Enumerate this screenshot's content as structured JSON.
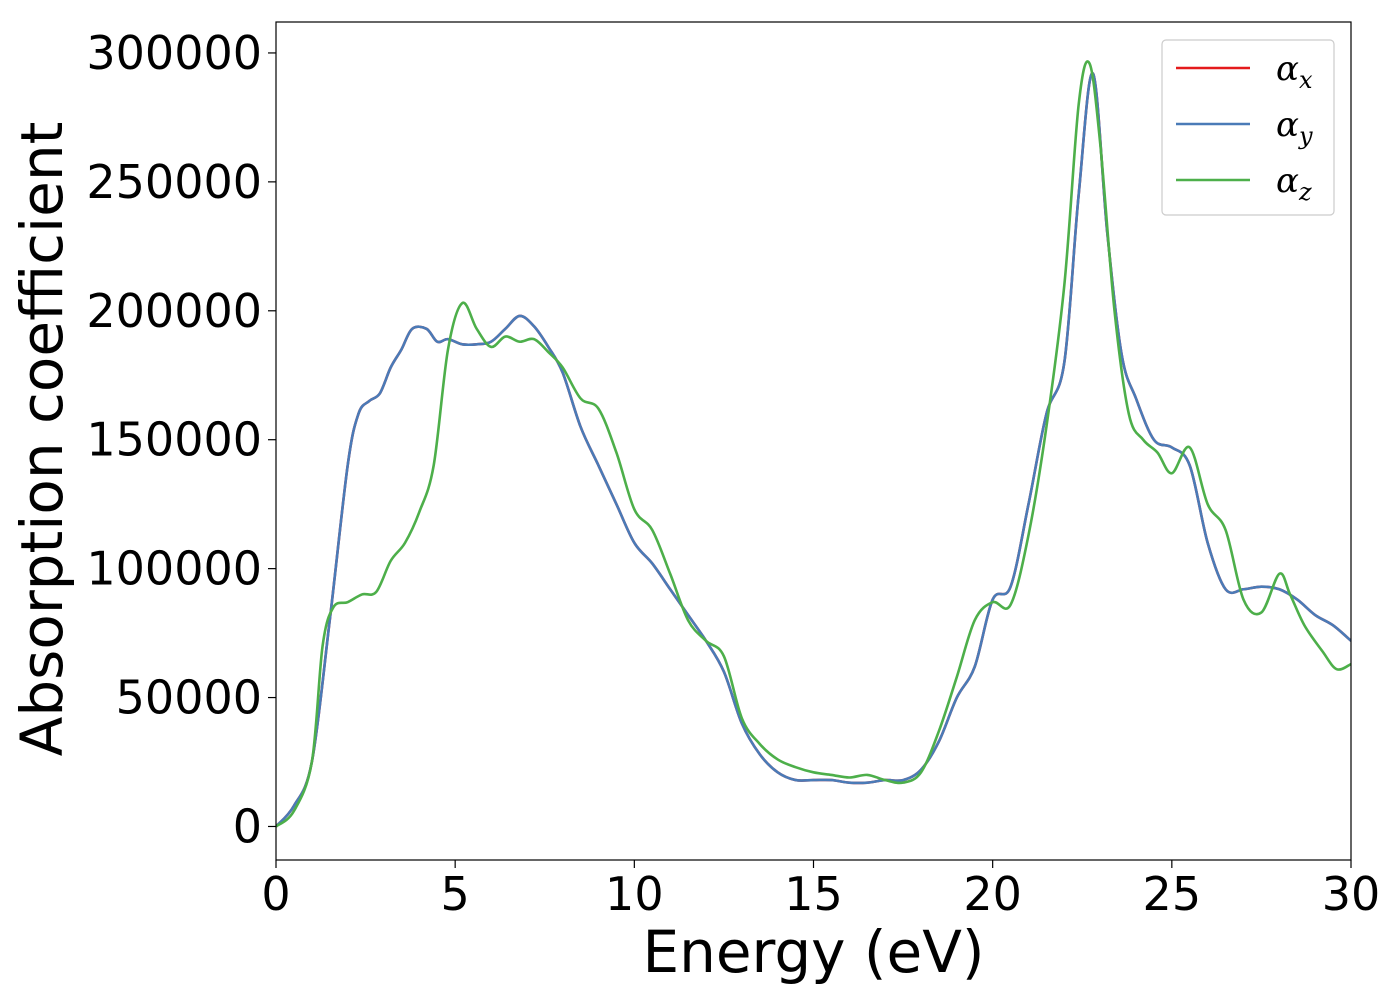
{
  "chart_data": {
    "type": "line",
    "title": "",
    "xlabel": "Energy (eV)",
    "ylabel": "Absorption coefficient",
    "xlim": [
      0,
      30
    ],
    "ylim": [
      -13000,
      312000
    ],
    "x_ticks": [
      0,
      5,
      10,
      15,
      20,
      25,
      30
    ],
    "y_ticks": [
      0,
      50000,
      100000,
      150000,
      200000,
      250000,
      300000
    ],
    "grid": false,
    "legend_position": "top-right",
    "series": [
      {
        "name": "α",
        "subscript": "x",
        "color": "#e41a1c",
        "x": [
          0,
          0.5,
          1.0,
          1.5,
          2.0,
          2.3,
          2.6,
          2.9,
          3.2,
          3.5,
          3.8,
          4.2,
          4.5,
          4.8,
          5.2,
          5.6,
          6.0,
          6.4,
          6.8,
          7.2,
          7.6,
          8.0,
          8.5,
          9.0,
          9.5,
          10.0,
          10.5,
          11.0,
          11.5,
          12.0,
          12.5,
          13.0,
          13.5,
          14.0,
          14.5,
          15.0,
          15.5,
          16.0,
          16.5,
          17.0,
          17.5,
          18.0,
          18.5,
          19.0,
          19.5,
          20.0,
          20.5,
          21.0,
          21.5,
          22.0,
          22.4,
          22.8,
          23.2,
          23.6,
          24.0,
          24.5,
          25.0,
          25.5,
          26.0,
          26.5,
          27.0,
          27.5,
          28.0,
          28.5,
          29.0,
          29.5,
          30.0
        ],
        "y": [
          0,
          8000,
          25000,
          80000,
          140000,
          160000,
          165000,
          168000,
          178000,
          185000,
          193000,
          193000,
          188000,
          189000,
          187000,
          187000,
          188000,
          193000,
          198000,
          194000,
          186000,
          176000,
          155000,
          140000,
          125000,
          110000,
          102000,
          92000,
          82000,
          72000,
          60000,
          40000,
          28000,
          21000,
          18000,
          18000,
          18000,
          17000,
          17000,
          18000,
          18000,
          22000,
          33000,
          50000,
          62000,
          88000,
          93000,
          125000,
          160000,
          180000,
          245000,
          292000,
          230000,
          183000,
          166000,
          150000,
          147000,
          140000,
          110000,
          92000,
          92000,
          93000,
          92000,
          88000,
          82000,
          78000,
          72000
        ]
      },
      {
        "name": "α",
        "subscript": "y",
        "color": "#4a7bb7",
        "x": [
          0,
          0.5,
          1.0,
          1.5,
          2.0,
          2.3,
          2.6,
          2.9,
          3.2,
          3.5,
          3.8,
          4.2,
          4.5,
          4.8,
          5.2,
          5.6,
          6.0,
          6.4,
          6.8,
          7.2,
          7.6,
          8.0,
          8.5,
          9.0,
          9.5,
          10.0,
          10.5,
          11.0,
          11.5,
          12.0,
          12.5,
          13.0,
          13.5,
          14.0,
          14.5,
          15.0,
          15.5,
          16.0,
          16.5,
          17.0,
          17.5,
          18.0,
          18.5,
          19.0,
          19.5,
          20.0,
          20.5,
          21.0,
          21.5,
          22.0,
          22.4,
          22.8,
          23.2,
          23.6,
          24.0,
          24.5,
          25.0,
          25.5,
          26.0,
          26.5,
          27.0,
          27.5,
          28.0,
          28.5,
          29.0,
          29.5,
          30.0
        ],
        "y": [
          0,
          8000,
          25000,
          80000,
          140000,
          160000,
          165000,
          168000,
          178000,
          185000,
          193000,
          193000,
          188000,
          189000,
          187000,
          187000,
          188000,
          193000,
          198000,
          194000,
          186000,
          176000,
          155000,
          140000,
          125000,
          110000,
          102000,
          92000,
          82000,
          72000,
          60000,
          40000,
          28000,
          21000,
          18000,
          18000,
          18000,
          17000,
          17000,
          18000,
          18000,
          22000,
          33000,
          50000,
          62000,
          88000,
          93000,
          125000,
          160000,
          180000,
          245000,
          292000,
          230000,
          183000,
          166000,
          150000,
          147000,
          140000,
          110000,
          92000,
          92000,
          93000,
          92000,
          88000,
          82000,
          78000,
          72000
        ]
      },
      {
        "name": "α",
        "subscript": "z",
        "color": "#4daf4a",
        "x": [
          0,
          0.5,
          1.0,
          1.3,
          1.6,
          2.0,
          2.4,
          2.8,
          3.2,
          3.6,
          4.0,
          4.4,
          4.8,
          5.2,
          5.6,
          6.0,
          6.4,
          6.8,
          7.2,
          7.6,
          8.0,
          8.5,
          9.0,
          9.5,
          10.0,
          10.5,
          11.0,
          11.5,
          12.0,
          12.5,
          13.0,
          13.5,
          14.0,
          14.5,
          15.0,
          15.5,
          16.0,
          16.5,
          17.0,
          17.5,
          18.0,
          18.5,
          19.0,
          19.5,
          20.0,
          20.5,
          21.0,
          21.5,
          22.0,
          22.4,
          22.7,
          23.0,
          23.4,
          23.8,
          24.2,
          24.6,
          25.0,
          25.5,
          26.0,
          26.5,
          27.0,
          27.5,
          28.0,
          28.3,
          28.7,
          29.2,
          29.6,
          30.0
        ],
        "y": [
          0,
          6000,
          25000,
          70000,
          85000,
          87000,
          90000,
          91000,
          103000,
          110000,
          122000,
          140000,
          185000,
          203000,
          193000,
          186000,
          190000,
          188000,
          189000,
          184000,
          178000,
          166000,
          162000,
          145000,
          123000,
          115000,
          98000,
          80000,
          72000,
          66000,
          42000,
          32000,
          26000,
          23000,
          21000,
          20000,
          19000,
          20000,
          18000,
          17000,
          21000,
          37000,
          58000,
          80000,
          87000,
          86000,
          113000,
          155000,
          210000,
          280000,
          296000,
          265000,
          200000,
          160000,
          150000,
          145000,
          137000,
          147000,
          125000,
          115000,
          88000,
          83000,
          98000,
          90000,
          78000,
          68000,
          61000,
          63000
        ]
      }
    ]
  }
}
